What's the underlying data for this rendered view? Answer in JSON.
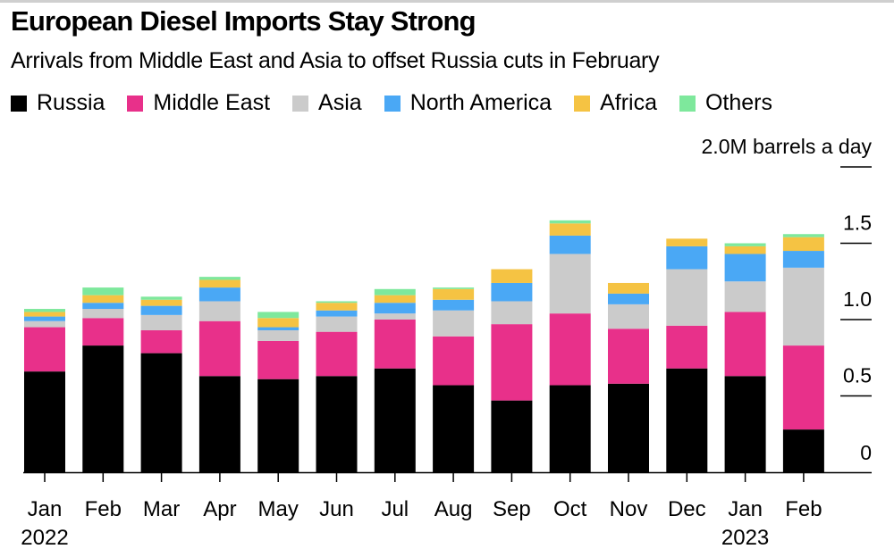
{
  "header": {
    "title": "European Diesel Imports Stay Strong",
    "subtitle": "Arrivals from Middle East and Asia to offset Russia cuts in February"
  },
  "legend": [
    {
      "name": "Russia",
      "color": "#000000"
    },
    {
      "name": "Middle East",
      "color": "#e8308a"
    },
    {
      "name": "Asia",
      "color": "#cbcbcb"
    },
    {
      "name": "North America",
      "color": "#4aa8f5"
    },
    {
      "name": "Africa",
      "color": "#f5c343"
    },
    {
      "name": "Others",
      "color": "#7ee89c"
    }
  ],
  "chart_data": {
    "type": "bar",
    "stacked": true,
    "title": "European Diesel Imports Stay Strong",
    "subtitle": "Arrivals from Middle East and Asia to offset Russia cuts in February",
    "unit_label": "2.0M barrels a day",
    "xlabel": "",
    "ylabel": "M barrels a day",
    "ylim": [
      0,
      2.0
    ],
    "yticks": [
      0,
      0.5,
      1.0,
      1.5,
      2.0
    ],
    "ytick_labels": [
      "0",
      "0.5",
      "1.0",
      "1.5",
      "2.0M barrels a day"
    ],
    "y_axis_side": "right",
    "legend_position": "top-left",
    "grid": false,
    "categories": [
      "Jan",
      "Feb",
      "Mar",
      "Apr",
      "May",
      "Jun",
      "Jul",
      "Aug",
      "Sep",
      "Oct",
      "Nov",
      "Dec",
      "Jan",
      "Feb"
    ],
    "year_labels": [
      {
        "index": 0,
        "label": "2022"
      },
      {
        "index": 12,
        "label": "2023"
      }
    ],
    "series": [
      {
        "name": "Russia",
        "color": "#000000",
        "values": [
          0.66,
          0.83,
          0.78,
          0.63,
          0.61,
          0.63,
          0.68,
          0.57,
          0.47,
          0.57,
          0.58,
          0.68,
          0.63,
          0.28
        ]
      },
      {
        "name": "Middle East",
        "color": "#e8308a",
        "values": [
          0.29,
          0.18,
          0.15,
          0.36,
          0.25,
          0.29,
          0.32,
          0.32,
          0.5,
          0.47,
          0.36,
          0.28,
          0.42,
          0.55
        ]
      },
      {
        "name": "Asia",
        "color": "#cbcbcb",
        "values": [
          0.04,
          0.06,
          0.1,
          0.13,
          0.07,
          0.1,
          0.04,
          0.17,
          0.15,
          0.39,
          0.16,
          0.37,
          0.2,
          0.51
        ]
      },
      {
        "name": "North America",
        "color": "#4aa8f5",
        "values": [
          0.03,
          0.04,
          0.06,
          0.09,
          0.02,
          0.04,
          0.07,
          0.07,
          0.12,
          0.12,
          0.07,
          0.15,
          0.18,
          0.11
        ]
      },
      {
        "name": "Africa",
        "color": "#f5c343",
        "values": [
          0.03,
          0.05,
          0.04,
          0.05,
          0.06,
          0.05,
          0.05,
          0.07,
          0.09,
          0.08,
          0.07,
          0.05,
          0.05,
          0.09
        ]
      },
      {
        "name": "Others",
        "color": "#7ee89c",
        "values": [
          0.02,
          0.05,
          0.02,
          0.02,
          0.04,
          0.01,
          0.04,
          0.01,
          0.0,
          0.02,
          0.0,
          0.0,
          0.02,
          0.02
        ]
      }
    ]
  }
}
